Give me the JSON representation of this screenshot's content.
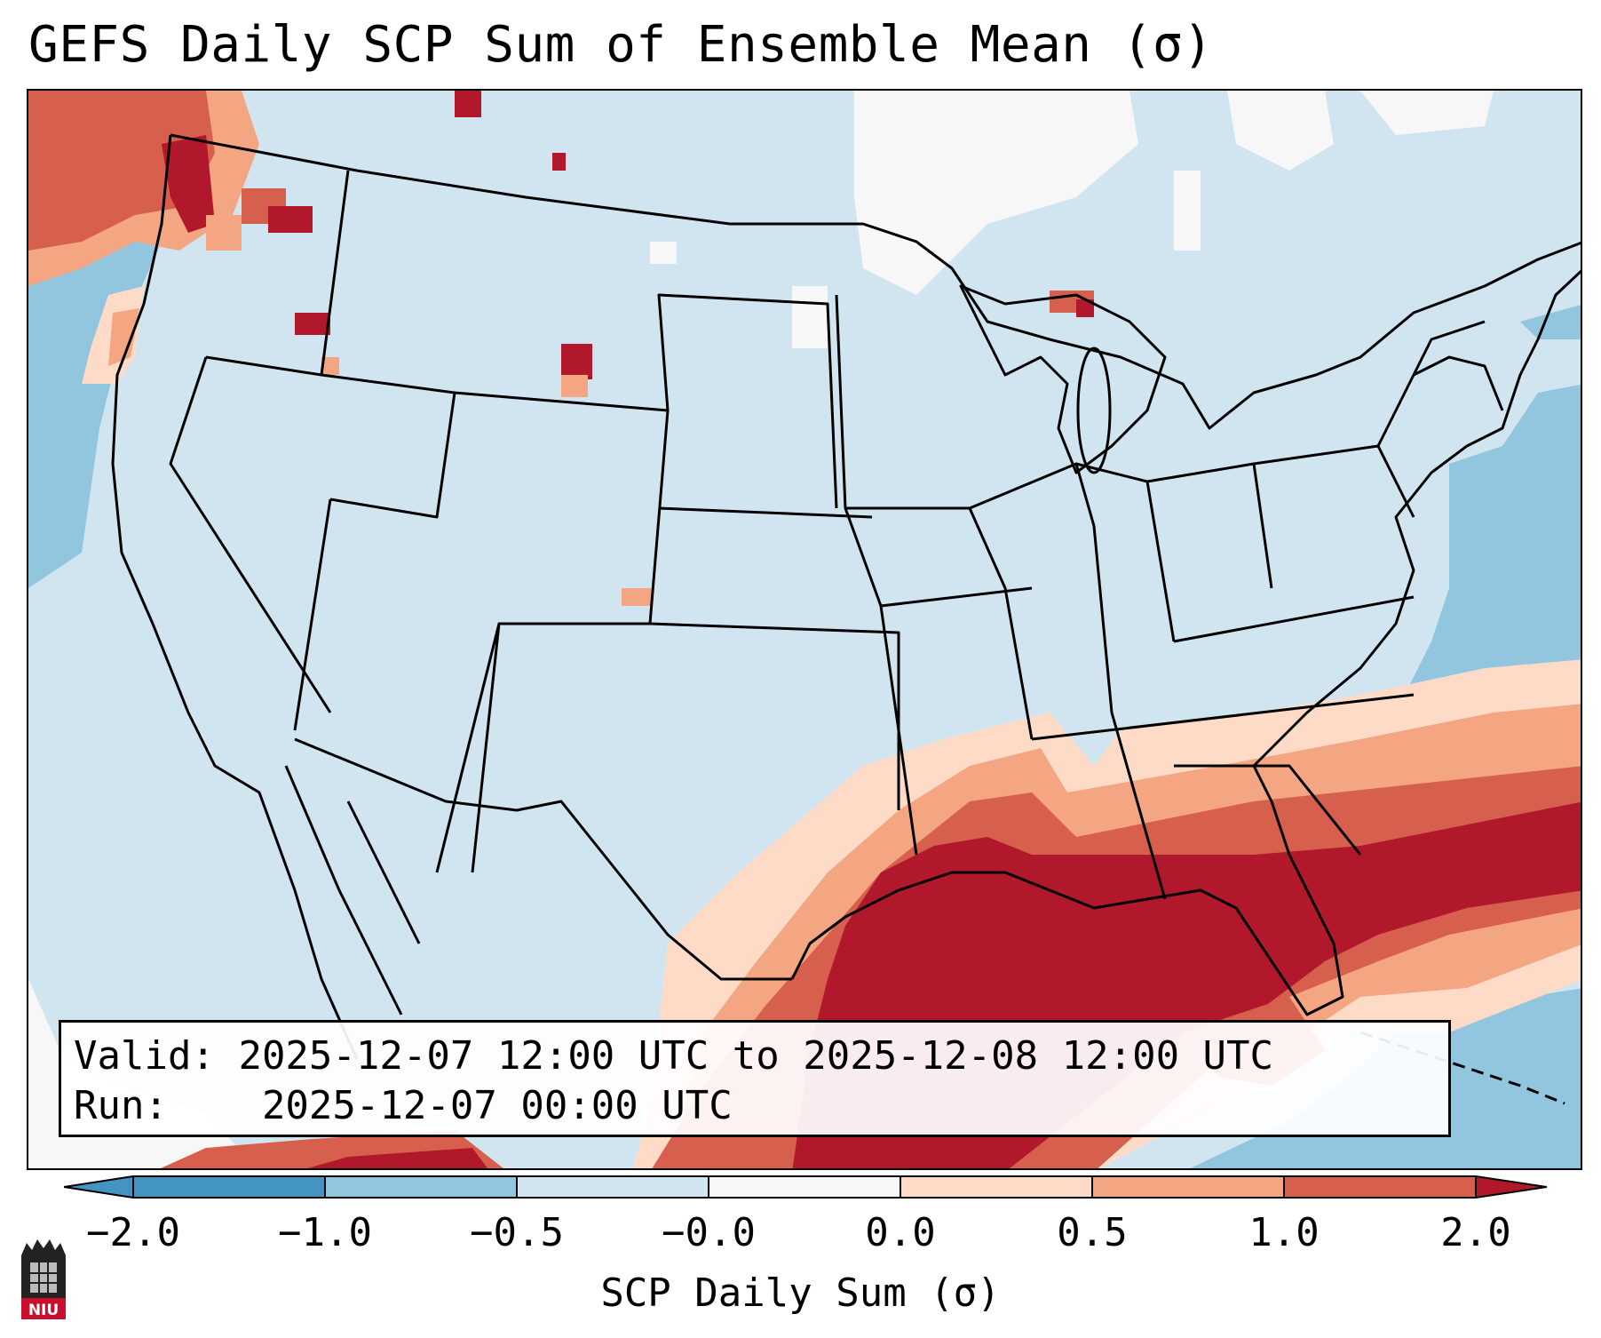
{
  "title": "GEFS Daily SCP Sum of Ensemble Mean (σ)",
  "info": {
    "valid_label": "Valid:",
    "valid_value": "2025-12-07 12:00 UTC to 2025-12-08 12:00 UTC",
    "run_label": "Run:",
    "run_value": "2025-12-07 00:00 UTC"
  },
  "colorbar": {
    "label": "SCP Daily Sum (σ)",
    "ticks": [
      "−2.0",
      "−1.0",
      "−0.5",
      "−0.0",
      "0.0",
      "0.5",
      "1.0",
      "2.0"
    ],
    "colors": [
      "#4393c3",
      "#92c5de",
      "#d1e5f0",
      "#f7f7f7",
      "#fddbc7",
      "#f4a582",
      "#d6604d",
      "#b2182b"
    ]
  },
  "map": {
    "region": "Contiguous United States",
    "highlight_region": "Gulf of Mexico"
  },
  "logo": {
    "text": "NIU"
  }
}
